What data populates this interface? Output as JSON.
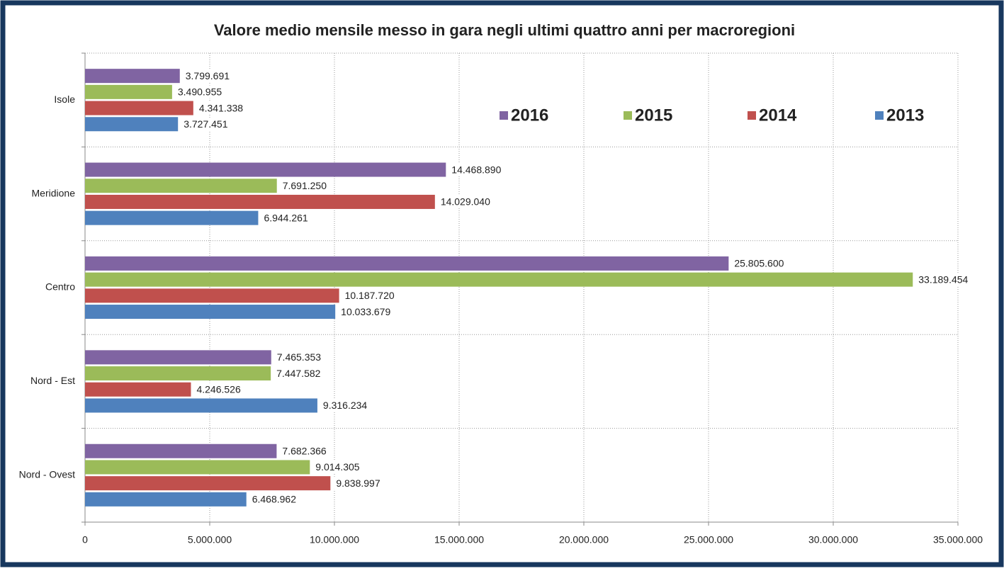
{
  "chart_data": {
    "type": "barh",
    "title": "Valore medio mensile messo in gara negli ultimi quattro anni per macroregioni",
    "categories": [
      "Isole",
      "Meridione",
      "Centro",
      "Nord - Est",
      "Nord - Ovest"
    ],
    "series": [
      {
        "name": "2016",
        "color": "#8064a2",
        "values": [
          3799691,
          14468890,
          25805600,
          7465353,
          7682366
        ],
        "value_labels": [
          "3.799.691",
          "14.468.890",
          "25.805.600",
          "7.465.353",
          "7.682.366"
        ]
      },
      {
        "name": "2015",
        "color": "#9bbb59",
        "values": [
          3490955,
          7691250,
          33189454,
          7447582,
          9014305
        ],
        "value_labels": [
          "3.490.955",
          "7.691.250",
          "33.189.454",
          "7.447.582",
          "9.014.305"
        ]
      },
      {
        "name": "2014",
        "color": "#c0504d",
        "values": [
          4341338,
          14029040,
          10187720,
          4246526,
          9838997
        ],
        "value_labels": [
          "4.341.338",
          "14.029.040",
          "10.187.720",
          "4.246.526",
          "9.838.997"
        ]
      },
      {
        "name": "2013",
        "color": "#4f81bd",
        "values": [
          3727451,
          6944261,
          10033679,
          9316234,
          6468962
        ],
        "value_labels": [
          "3.727.451",
          "6.944.261",
          "10.033.679",
          "9.316.234",
          "6.468.962"
        ]
      }
    ],
    "xlim": [
      0,
      35000000
    ],
    "xticks": [
      0,
      {
        "value": 5000000,
        "label": "5.000.000"
      },
      {
        "value": 10000000,
        "label": "10.000.000"
      },
      {
        "value": 15000000,
        "label": "15.000.000"
      },
      {
        "value": 20000000,
        "label": "20.000.000"
      },
      {
        "value": 25000000,
        "label": "25.000.000"
      },
      {
        "value": 30000000,
        "label": "30.000.000"
      },
      {
        "value": 35000000,
        "label": "35.000.000"
      }
    ],
    "grid": true,
    "legend": "upper right"
  }
}
